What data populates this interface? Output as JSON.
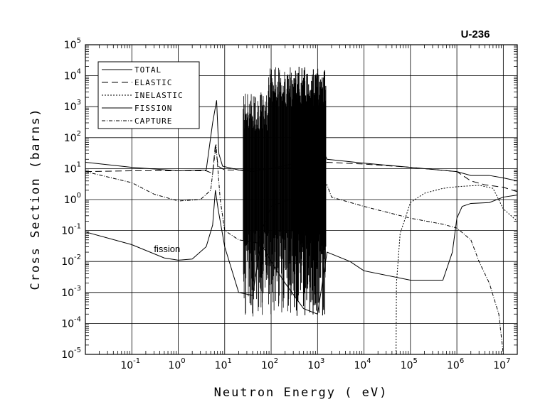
{
  "chart_data": {
    "type": "line",
    "title": "U-236",
    "xlabel": "Neutron Energy ( eV)",
    "ylabel": "Cross Section (barns)",
    "x_scale": "log",
    "y_scale": "log",
    "xlim": [
      0.01,
      20000000
    ],
    "ylim": [
      1e-05,
      100000
    ],
    "grid": true,
    "legend_position": "top-left",
    "x_ticks": [
      {
        "base": "10",
        "exp": "-1",
        "value": 0.1
      },
      {
        "base": "10",
        "exp": "0",
        "value": 1
      },
      {
        "base": "10",
        "exp": "1",
        "value": 10
      },
      {
        "base": "10",
        "exp": "2",
        "value": 100
      },
      {
        "base": "10",
        "exp": "3",
        "value": 1000
      },
      {
        "base": "10",
        "exp": "4",
        "value": 10000
      },
      {
        "base": "10",
        "exp": "5",
        "value": 100000
      },
      {
        "base": "10",
        "exp": "6",
        "value": 1000000
      },
      {
        "base": "10",
        "exp": "7",
        "value": 10000000
      }
    ],
    "y_ticks": [
      {
        "base": "10",
        "exp": "-5",
        "value": 1e-05
      },
      {
        "base": "10",
        "exp": "-4",
        "value": 0.0001
      },
      {
        "base": "10",
        "exp": "-3",
        "value": 0.001
      },
      {
        "base": "10",
        "exp": "-2",
        "value": 0.01
      },
      {
        "base": "10",
        "exp": "-1",
        "value": 0.1
      },
      {
        "base": "10",
        "exp": "0",
        "value": 1
      },
      {
        "base": "10",
        "exp": "1",
        "value": 10
      },
      {
        "base": "10",
        "exp": "2",
        "value": 100
      },
      {
        "base": "10",
        "exp": "3",
        "value": 1000
      },
      {
        "base": "10",
        "exp": "4",
        "value": 10000
      },
      {
        "base": "10",
        "exp": "5",
        "value": 100000
      }
    ],
    "annotations": [
      {
        "text": "fission",
        "x": 0.3,
        "y": 0.025
      }
    ],
    "series": [
      {
        "name": "TOTAL",
        "style": "solid",
        "points": [
          [
            0.01,
            16
          ],
          [
            0.1,
            11
          ],
          [
            1,
            8.5
          ],
          [
            4,
            9
          ],
          [
            5.5,
            300
          ],
          [
            6.7,
            1600
          ],
          [
            7.5,
            30
          ],
          [
            9,
            12
          ],
          [
            20,
            9
          ],
          [
            40,
            8
          ],
          [
            100,
            10
          ],
          [
            1500,
            25
          ],
          [
            1600,
            20
          ],
          [
            10000,
            15
          ],
          [
            100000,
            11
          ],
          [
            1000000,
            8
          ],
          [
            2000000,
            6
          ],
          [
            5000000,
            6
          ],
          [
            10000000,
            5
          ],
          [
            20000000,
            4
          ]
        ]
      },
      {
        "name": "ELASTIC",
        "style": "long-dash",
        "points": [
          [
            0.01,
            8
          ],
          [
            0.1,
            8.5
          ],
          [
            1,
            8.5
          ],
          [
            4,
            8.5
          ],
          [
            5.5,
            7
          ],
          [
            6.3,
            60
          ],
          [
            7.2,
            12
          ],
          [
            10,
            9
          ],
          [
            30,
            9
          ],
          [
            100,
            10
          ],
          [
            1000,
            12
          ],
          [
            1600,
            16
          ],
          [
            10000,
            14
          ],
          [
            100000,
            11
          ],
          [
            1000000,
            8
          ],
          [
            2000000,
            4
          ],
          [
            4000000,
            3
          ],
          [
            10000000,
            2.5
          ],
          [
            20000000,
            1.8
          ]
        ]
      },
      {
        "name": "INELASTIC",
        "style": "dotted",
        "points": [
          [
            49000,
            1e-05
          ],
          [
            50000,
            0.002
          ],
          [
            60000,
            0.08
          ],
          [
            100000,
            0.8
          ],
          [
            200000,
            1.6
          ],
          [
            500000,
            2.3
          ],
          [
            1000000,
            2.6
          ],
          [
            3000000,
            2.9
          ],
          [
            6000000,
            2.3
          ],
          [
            10000000,
            0.5
          ],
          [
            20000000,
            0.2
          ]
        ]
      },
      {
        "name": "FISSION",
        "style": "solid",
        "points": [
          [
            0.01,
            0.09
          ],
          [
            0.1,
            0.035
          ],
          [
            0.5,
            0.013
          ],
          [
            1,
            0.011
          ],
          [
            2,
            0.012
          ],
          [
            4,
            0.03
          ],
          [
            5.5,
            0.15
          ],
          [
            6.3,
            2
          ],
          [
            7.2,
            0.5
          ],
          [
            10,
            0.03
          ],
          [
            20,
            0.001
          ],
          [
            40,
            0.0008
          ],
          [
            60,
            0.04
          ],
          [
            100,
            0.01
          ],
          [
            200,
            0.002
          ],
          [
            500,
            0.0003
          ],
          [
            1000,
            0.0002
          ],
          [
            1600,
            0.02
          ],
          [
            5000,
            0.01
          ],
          [
            10000,
            0.005
          ],
          [
            100000,
            0.0025
          ],
          [
            500000,
            0.0025
          ],
          [
            800000,
            0.02
          ],
          [
            1000000,
            0.25
          ],
          [
            1300000,
            0.6
          ],
          [
            2000000,
            0.75
          ],
          [
            5000000,
            0.8
          ],
          [
            10000000,
            1.2
          ],
          [
            20000000,
            1.4
          ]
        ]
      },
      {
        "name": "CAPTURE",
        "style": "dash-dot",
        "points": [
          [
            0.01,
            8
          ],
          [
            0.1,
            3.5
          ],
          [
            0.3,
            1.5
          ],
          [
            1,
            0.9
          ],
          [
            3,
            1
          ],
          [
            5,
            2
          ],
          [
            6.5,
            60
          ],
          [
            8,
            1
          ],
          [
            10,
            0.1
          ],
          [
            20,
            0.05
          ],
          [
            50,
            0.04
          ],
          [
            100,
            0.6
          ],
          [
            1600,
            3
          ],
          [
            2000,
            1.2
          ],
          [
            10000,
            0.6
          ],
          [
            100000,
            0.25
          ],
          [
            500000,
            0.16
          ],
          [
            1000000,
            0.12
          ],
          [
            2000000,
            0.05
          ],
          [
            3000000,
            0.01
          ],
          [
            5000000,
            0.002
          ],
          [
            8000000,
            0.0002
          ],
          [
            10000000,
            1e-05
          ]
        ]
      }
    ],
    "resonance_region": {
      "x_start": 25,
      "x_end": 1500
    }
  }
}
